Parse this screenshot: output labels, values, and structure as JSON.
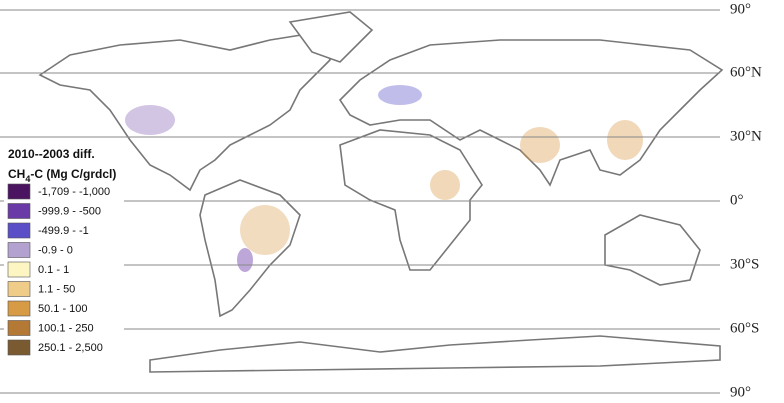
{
  "legend": {
    "title": "2010--2003 diff.",
    "subtitle_parts": [
      "CH",
      "4",
      "-C (Mg C/grdcl)"
    ],
    "items": [
      {
        "label": "-1,709 - -1,000",
        "color": "#4b1460"
      },
      {
        "label": "-999.9 - -500",
        "color": "#6a3ba6"
      },
      {
        "label": "-499.9 - -1",
        "color": "#5a4fc7"
      },
      {
        "label": "-0.9 - 0",
        "color": "#b3a2cf"
      },
      {
        "label": "0.1 - 1",
        "color": "#fdf6c3"
      },
      {
        "label": "1.1 - 50",
        "color": "#efcc88"
      },
      {
        "label": "50.1 - 100",
        "color": "#d79a45"
      },
      {
        "label": "100.1 - 250",
        "color": "#b47a35"
      },
      {
        "label": "250.1 - 2,500",
        "color": "#7a5a30"
      }
    ]
  },
  "latitude_labels": [
    "90°",
    "60°N",
    "30°N",
    "0°",
    "30°S",
    "60°S",
    "90°"
  ]
}
